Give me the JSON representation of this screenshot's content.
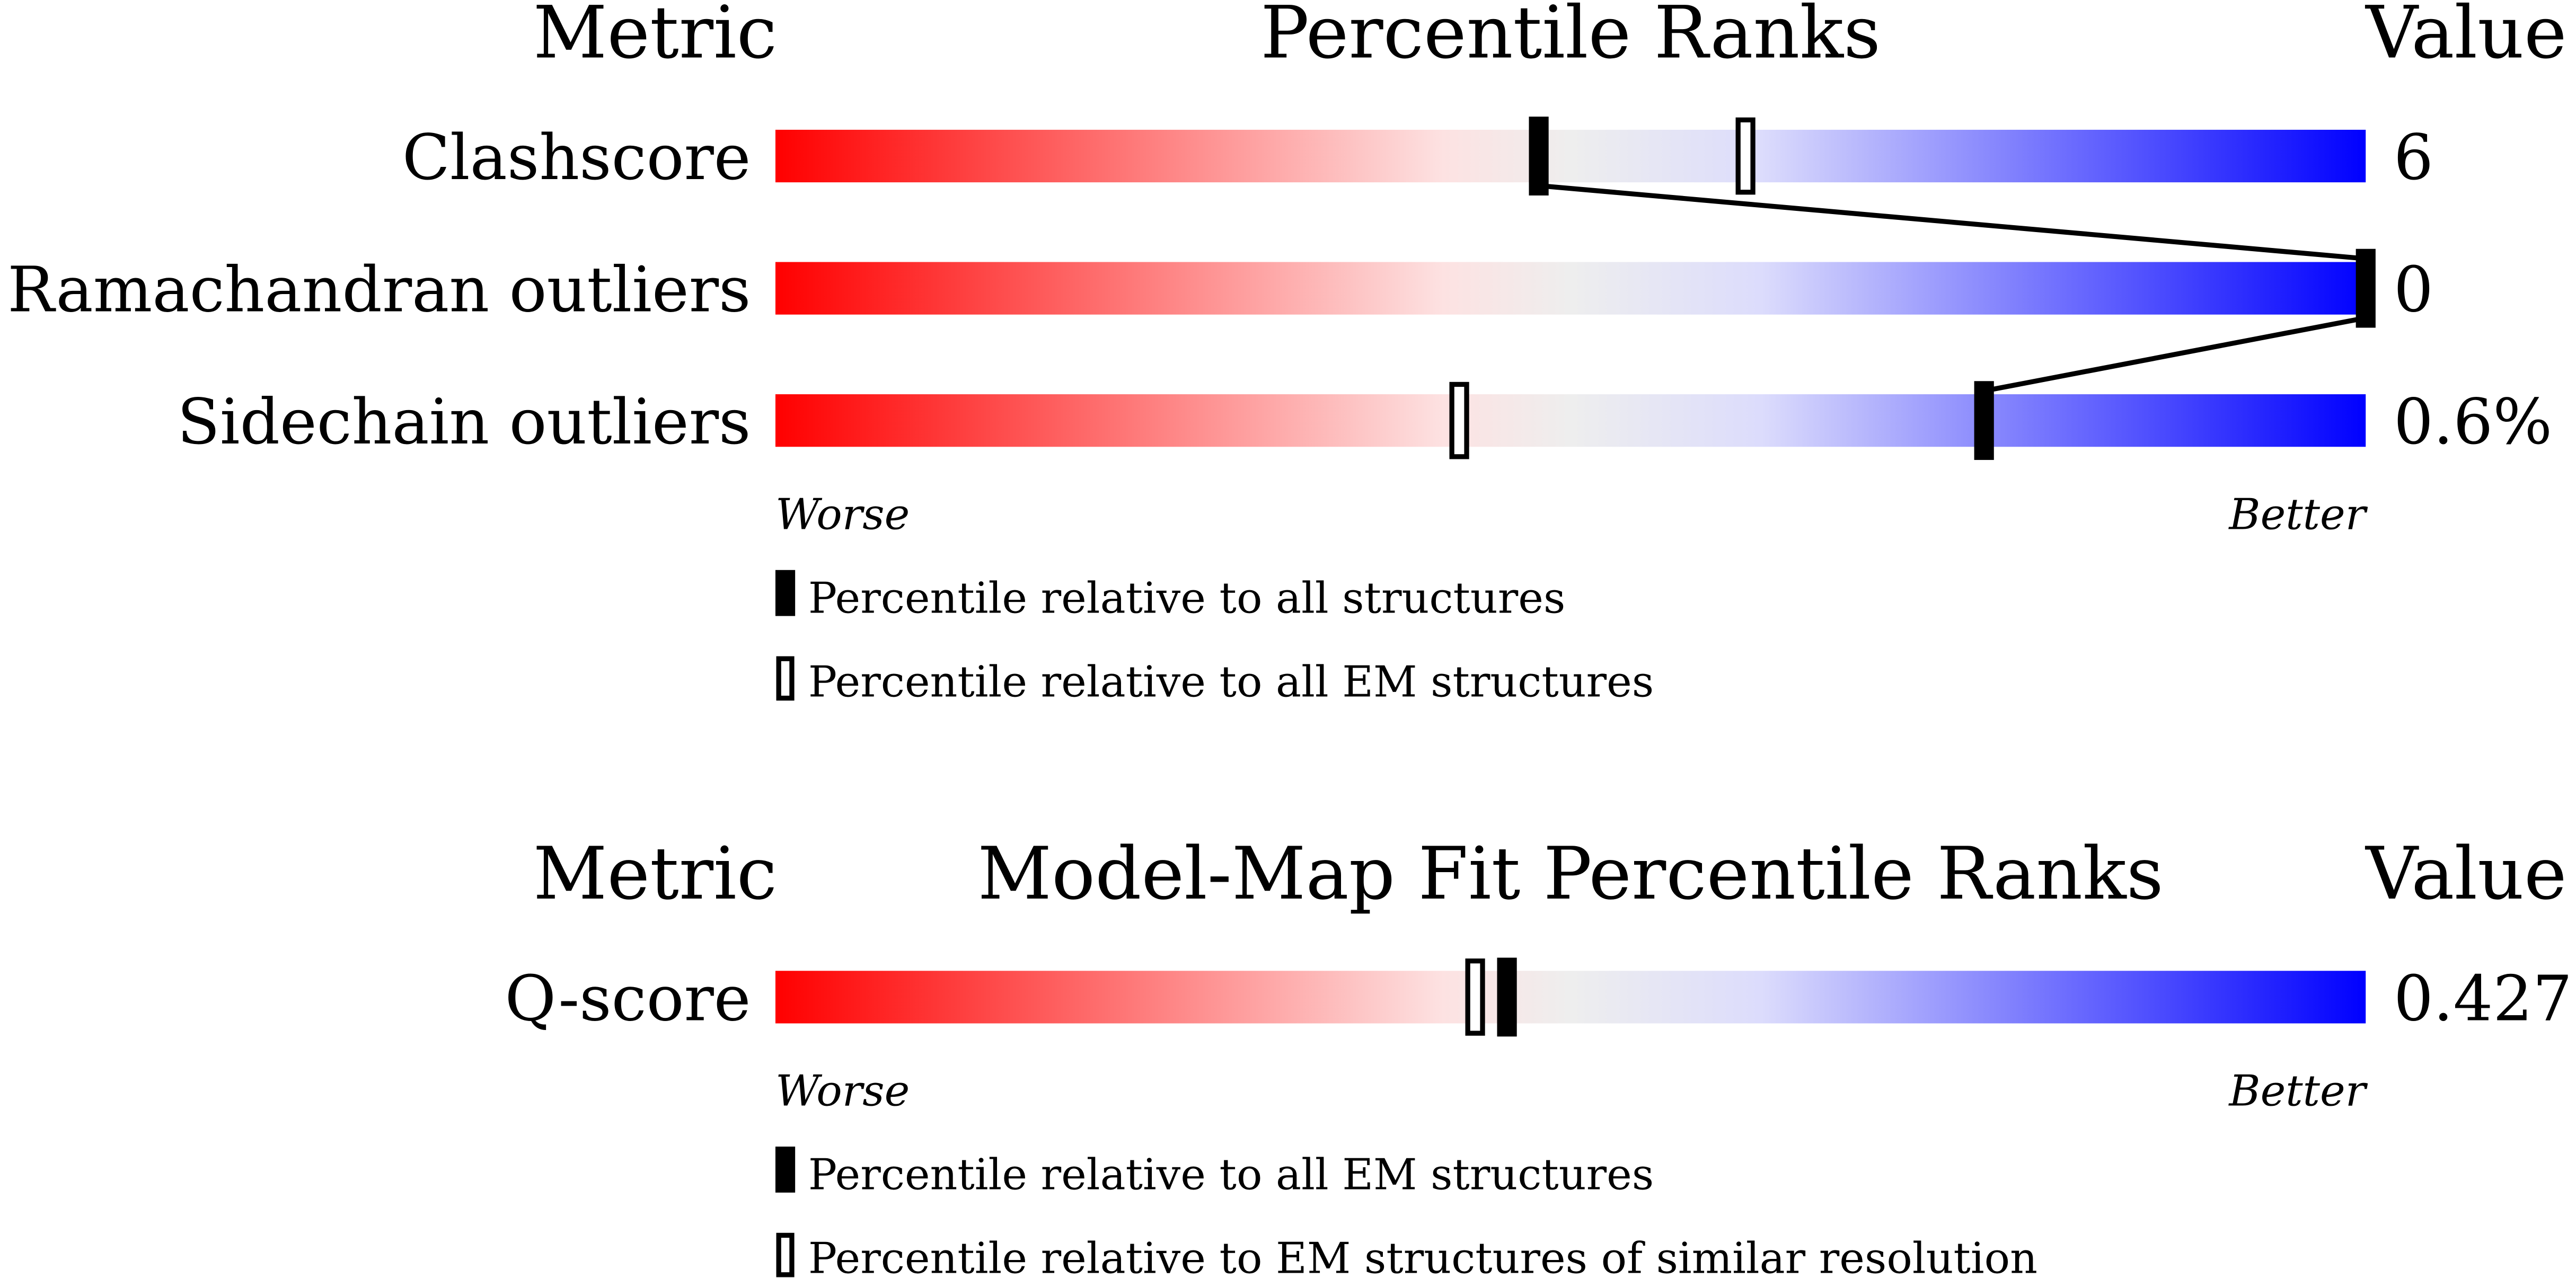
{
  "panels": [
    {
      "headers": {
        "metric": "Metric",
        "title": "Percentile Ranks",
        "value": "Value"
      },
      "xlim": [
        0,
        100
      ],
      "rows": [
        {
          "label": "Clashscore",
          "value": "6",
          "percentile_all": 48,
          "percentile_em": 61
        },
        {
          "label": "Ramachandran outliers",
          "value": "0",
          "percentile_all": 100,
          "percentile_em": null
        },
        {
          "label": "Sidechain outliers",
          "value": "0.6%",
          "percentile_all": 76,
          "percentile_em": 43
        }
      ],
      "worse": "Worse",
      "better": "Better",
      "legend": {
        "filled": "Percentile relative to all structures",
        "open": "Percentile relative to all EM structures"
      }
    },
    {
      "headers": {
        "metric": "Metric",
        "title": "Model-Map Fit Percentile Ranks",
        "value": "Value"
      },
      "xlim": [
        0,
        100
      ],
      "rows": [
        {
          "label": "Q-score",
          "value": "0.427",
          "percentile_all": 46,
          "percentile_em": 44
        }
      ],
      "worse": "Worse",
      "better": "Better",
      "legend": {
        "filled": "Percentile relative to all EM structures",
        "open": "Percentile relative to EM structures of similar resolution"
      }
    }
  ]
}
